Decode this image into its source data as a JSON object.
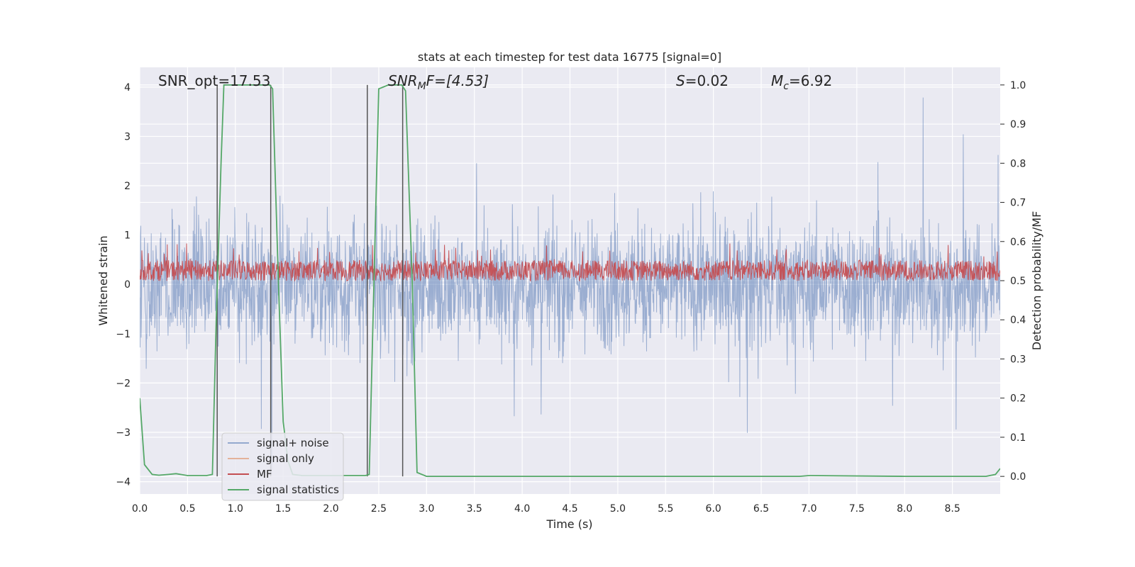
{
  "chart_data": {
    "type": "line",
    "title": "stats at each timestep for test data 16775 [signal=0]",
    "xlabel": "Time (s)",
    "ylabel_left": "Whitened strain",
    "ylabel_right": "Detection probability/MF",
    "xlim": [
      0.0,
      9.0
    ],
    "ylim_left": [
      -4.25,
      4.4
    ],
    "ylim_right": [
      -0.045,
      1.045
    ],
    "x_ticks": [
      "0.0",
      "0.5",
      "1.0",
      "1.5",
      "2.0",
      "2.5",
      "3.0",
      "3.5",
      "4.0",
      "4.5",
      "5.0",
      "5.5",
      "6.0",
      "6.5",
      "7.0",
      "7.5",
      "8.0",
      "8.5"
    ],
    "y_ticks_left": [
      "4",
      "3",
      "2",
      "1",
      "0",
      "−1",
      "−2",
      "−3",
      "−4"
    ],
    "y_ticks_right": [
      "1.0",
      "0.9",
      "0.8",
      "0.7",
      "0.6",
      "0.5",
      "0.4",
      "0.3",
      "0.2",
      "0.1",
      "0.0"
    ],
    "grid": true,
    "legend_position": "lower-left",
    "annotations": {
      "snr_opt": "SNR_opt=17.53",
      "snr_mf_main": "SNR",
      "snr_mf_sub": "M",
      "snr_mf_rest": "F=[4.53]",
      "s_main": "S",
      "s_rest": "=0.02",
      "mc_main": "M",
      "mc_sub": "c",
      "mc_rest": "=6.92"
    },
    "series": [
      {
        "name": "signal+ noise",
        "axis": "left",
        "color": "#4c72b0",
        "note_values": "dense noise, amplitude up to ±4"
      },
      {
        "name": "signal only",
        "axis": "left",
        "color": "#dd8452",
        "values": []
      },
      {
        "name": "MF",
        "axis": "left",
        "color": "#c44e52",
        "note_values": "dense trace between 0 and ~1"
      },
      {
        "name": "signal statistics",
        "axis": "right",
        "color": "#55a868",
        "x": [
          0.0,
          0.05,
          0.13,
          0.2,
          0.3,
          0.38,
          0.5,
          0.6,
          0.7,
          0.76,
          0.8,
          0.85,
          0.88,
          1.0,
          1.2,
          1.36,
          1.39,
          1.45,
          1.5,
          1.55,
          1.6,
          1.7,
          2.0,
          2.3,
          2.36,
          2.4,
          2.45,
          2.5,
          2.6,
          2.74,
          2.78,
          2.85,
          2.9,
          3.0,
          5.0,
          6.9,
          7.0,
          8.0,
          8.85,
          8.95,
          9.0
        ],
        "y": [
          0.2,
          0.03,
          0.005,
          0.003,
          0.005,
          0.007,
          0.002,
          0.002,
          0.002,
          0.005,
          0.4,
          0.8,
          1.0,
          1.0,
          1.0,
          1.0,
          0.99,
          0.5,
          0.14,
          0.04,
          0.005,
          0.002,
          0.002,
          0.002,
          0.002,
          0.005,
          0.5,
          0.99,
          1.0,
          1.0,
          0.985,
          0.5,
          0.01,
          0.0,
          0.0,
          0.0,
          0.002,
          0.0,
          0.0,
          0.005,
          0.02
        ]
      }
    ],
    "vlines_x": [
      0.81,
      1.37,
      2.38,
      2.75
    ],
    "colors": {
      "plot_bg": "#eaeaf2",
      "grid": "#ffffff",
      "noise": "#4c72b0",
      "signal": "#dd8452",
      "mf": "#c44e52",
      "stat": "#55a868",
      "vline": "#555555"
    }
  }
}
